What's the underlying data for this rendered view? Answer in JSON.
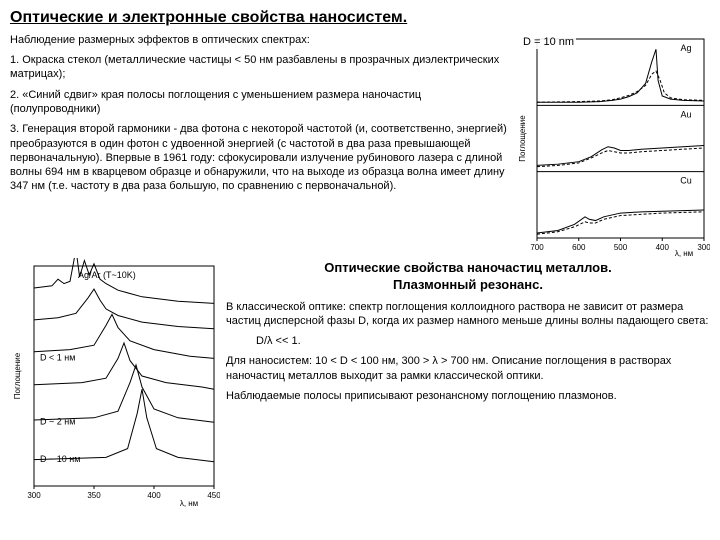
{
  "title": "Оптические и электронные свойства наносистем.",
  "intro": "Наблюдение размерных эффектов в оптических спектрах:",
  "point1": "1. Окраска стекол (металлические частицы < 50 нм разбавлены в прозрачных диэлектрических матрицах);",
  "point2": "2. «Синий сдвиг» края полосы поглощения с уменьшением размера наночастиц (полупроводники)",
  "point3": "3. Генерация второй гармоники - два фотона с некоторой частотой (и, соответственно, энергией) преобразуются в один фотон с удвоенной энергией (с частотой в два раза превышающей первоначальную). Впервые в 1961 году: сфокусировали излучение рубинового лазера с длиной волны 694 нм в кварцевом образце и обнаружили, что на выходе из образца волна имеет длину 347 нм (т.е. частоту в два раза большую, по сравнению с первоначальной).",
  "d_note": "D = 10 nm",
  "subtitle1": "Оптические свойства наночастиц металлов.",
  "subtitle2": "Плазмонный резонанс.",
  "body1": "В классической оптике: спектр поглощения коллоидного раствора не зависит от размера частиц дисперсной фазы D, когда их размер намного меньше длины волны падающего света:",
  "body1b": "D/λ << 1.",
  "body2": "Для наносистем: 10 < D < 100 нм, 300 > λ > 700 нм. Описание поглощения в растворах наночастиц металлов выходит за рамки классической оптики.",
  "body3": "Наблюдаемые полосы приписывают резонансному поглощению плазмонов.",
  "fig_right": {
    "type": "line",
    "panels": [
      "Ag",
      "Au",
      "Cu"
    ],
    "xlabel": "λ, нм",
    "ylabel": "Поглощение",
    "xlim": [
      700,
      300
    ],
    "xticks": [
      700,
      600,
      500,
      400,
      300
    ],
    "colors": {
      "stroke": "#000000",
      "dashed": "#000000",
      "bg": "#ffffff",
      "border": "#000000"
    },
    "Ag": {
      "solid": [
        [
          700,
          5
        ],
        [
          600,
          5
        ],
        [
          550,
          6
        ],
        [
          520,
          8
        ],
        [
          500,
          10
        ],
        [
          480,
          14
        ],
        [
          460,
          20
        ],
        [
          440,
          35
        ],
        [
          425,
          70
        ],
        [
          415,
          90
        ],
        [
          410,
          40
        ],
        [
          400,
          15
        ],
        [
          380,
          10
        ],
        [
          350,
          8
        ],
        [
          300,
          7
        ]
      ],
      "dashed": [
        [
          700,
          5
        ],
        [
          600,
          6
        ],
        [
          550,
          7
        ],
        [
          520,
          9
        ],
        [
          500,
          12
        ],
        [
          480,
          16
        ],
        [
          460,
          22
        ],
        [
          440,
          32
        ],
        [
          425,
          50
        ],
        [
          415,
          55
        ],
        [
          405,
          40
        ],
        [
          395,
          20
        ],
        [
          380,
          12
        ],
        [
          350,
          9
        ],
        [
          300,
          8
        ]
      ]
    },
    "Au": {
      "solid": [
        [
          700,
          10
        ],
        [
          650,
          12
        ],
        [
          600,
          16
        ],
        [
          570,
          24
        ],
        [
          545,
          35
        ],
        [
          530,
          40
        ],
        [
          515,
          38
        ],
        [
          500,
          34
        ],
        [
          480,
          34
        ],
        [
          450,
          36
        ],
        [
          400,
          38
        ],
        [
          350,
          40
        ],
        [
          300,
          42
        ]
      ],
      "dashed": [
        [
          700,
          8
        ],
        [
          650,
          10
        ],
        [
          600,
          14
        ],
        [
          570,
          22
        ],
        [
          545,
          30
        ],
        [
          530,
          34
        ],
        [
          515,
          32
        ],
        [
          500,
          30
        ],
        [
          480,
          30
        ],
        [
          450,
          32
        ],
        [
          400,
          34
        ],
        [
          350,
          36
        ],
        [
          300,
          38
        ]
      ]
    },
    "Cu": {
      "solid": [
        [
          700,
          8
        ],
        [
          650,
          12
        ],
        [
          610,
          22
        ],
        [
          585,
          34
        ],
        [
          575,
          30
        ],
        [
          560,
          28
        ],
        [
          540,
          34
        ],
        [
          500,
          40
        ],
        [
          450,
          42
        ],
        [
          400,
          43
        ],
        [
          350,
          44
        ],
        [
          300,
          45
        ]
      ],
      "dashed": [
        [
          700,
          6
        ],
        [
          650,
          10
        ],
        [
          610,
          18
        ],
        [
          585,
          26
        ],
        [
          575,
          24
        ],
        [
          560,
          24
        ],
        [
          540,
          30
        ],
        [
          500,
          36
        ],
        [
          450,
          38
        ],
        [
          400,
          40
        ],
        [
          350,
          41
        ],
        [
          300,
          42
        ]
      ]
    }
  },
  "fig_left": {
    "type": "line",
    "title": "Ag/Ar (T~10K)",
    "xlabel": "λ, нм",
    "ylabel": "Поглощение",
    "xlim": [
      300,
      450
    ],
    "xticks": [
      300,
      350,
      400,
      450
    ],
    "colors": {
      "stroke": "#000000",
      "bg": "#ffffff",
      "border": "#000000"
    },
    "curves": [
      {
        "label": "",
        "offset": 160,
        "x": [
          300,
          315,
          320,
          325,
          330,
          335,
          338,
          342,
          346,
          350,
          355,
          360,
          370,
          390,
          420,
          450
        ],
        "y": [
          20,
          22,
          28,
          24,
          26,
          55,
          30,
          45,
          32,
          42,
          28,
          24,
          18,
          12,
          8,
          6
        ]
      },
      {
        "label": "",
        "offset": 135,
        "x": [
          300,
          320,
          335,
          345,
          350,
          355,
          360,
          370,
          390,
          420,
          450
        ],
        "y": [
          16,
          18,
          22,
          36,
          44,
          34,
          26,
          20,
          14,
          10,
          8
        ]
      },
      {
        "label": "D < 1 нм",
        "offset": 108,
        "x": [
          300,
          330,
          350,
          360,
          365,
          370,
          380,
          400,
          430,
          450
        ],
        "y": [
          14,
          16,
          20,
          38,
          48,
          36,
          24,
          16,
          10,
          8
        ]
      },
      {
        "label": "",
        "offset": 80,
        "x": [
          300,
          340,
          360,
          370,
          375,
          380,
          390,
          410,
          440,
          450
        ],
        "y": [
          12,
          14,
          18,
          36,
          50,
          34,
          20,
          14,
          10,
          8
        ]
      },
      {
        "label": "D ~ 2 нм",
        "offset": 50,
        "x": [
          300,
          350,
          370,
          380,
          385,
          390,
          400,
          420,
          450
        ],
        "y": [
          10,
          12,
          18,
          44,
          60,
          40,
          20,
          12,
          8
        ]
      },
      {
        "label": "D ~ 10 нм",
        "offset": 16,
        "x": [
          300,
          360,
          378,
          386,
          390,
          394,
          402,
          420,
          450
        ],
        "y": [
          8,
          10,
          18,
          50,
          72,
          46,
          18,
          10,
          6
        ]
      }
    ]
  }
}
